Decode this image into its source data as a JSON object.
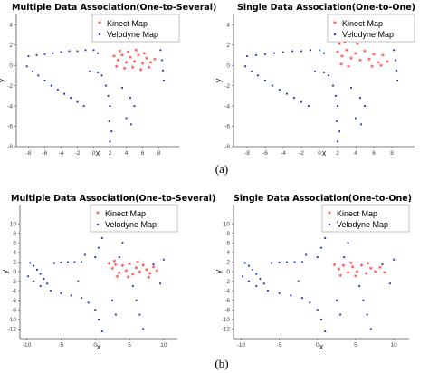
{
  "captions": [
    "(a)",
    "(b)"
  ],
  "colors": {
    "kinect": "#ff0000",
    "velodyne": "#1f3fbf",
    "axis": "#555555"
  },
  "chart_data": [
    {
      "type": "scatter",
      "title": "Multiple Data Association(One-to-Several)",
      "xlabel": "x",
      "ylabel": "y",
      "xlim": [
        -9.5,
        10.5
      ],
      "ylim": [
        -8,
        5
      ],
      "xticks": [
        -8,
        -6,
        -4,
        -2,
        0,
        2,
        4,
        6,
        8
      ],
      "yticks": [
        4,
        2,
        0,
        -2,
        -4,
        -6,
        -8
      ],
      "legend": "top-right",
      "series": [
        {
          "name": "Kinect Map",
          "marker": "*",
          "color": "#ff0000",
          "points": [
            [
              2.5,
              0.8
            ],
            [
              3.0,
              0.4
            ],
            [
              3.5,
              0.9
            ],
            [
              4.0,
              0.2
            ],
            [
              4.5,
              0.7
            ],
            [
              5.0,
              0.3
            ],
            [
              5.5,
              0.9
            ],
            [
              6.0,
              0.1
            ],
            [
              6.5,
              0.6
            ],
            [
              7.0,
              0.2
            ],
            [
              2.8,
              -0.2
            ],
            [
              3.8,
              -0.4
            ],
            [
              4.8,
              -0.3
            ],
            [
              5.8,
              -0.5
            ],
            [
              6.8,
              -0.3
            ],
            [
              3.2,
              1.3
            ],
            [
              4.2,
              1.2
            ],
            [
              5.2,
              1.4
            ],
            [
              6.2,
              1.1
            ],
            [
              7.5,
              0.5
            ]
          ]
        },
        {
          "name": "Velodyne Map",
          "marker": ".",
          "color": "#1f3fbf",
          "points": [
            [
              -8.2,
              -0.1
            ],
            [
              -7.5,
              -0.6
            ],
            [
              -6.8,
              -1.0
            ],
            [
              -6.0,
              -1.5
            ],
            [
              -5.2,
              -2.0
            ],
            [
              -4.4,
              -2.4
            ],
            [
              -3.6,
              -2.8
            ],
            [
              -2.8,
              -3.2
            ],
            [
              -2.0,
              -3.6
            ],
            [
              -1.2,
              -4.0
            ],
            [
              -8.0,
              0.9
            ],
            [
              -7.0,
              1.0
            ],
            [
              -6.0,
              1.1
            ],
            [
              -5.0,
              1.2
            ],
            [
              -4.0,
              1.3
            ],
            [
              -3.0,
              1.4
            ],
            [
              -2.0,
              1.4
            ],
            [
              -1.0,
              1.5
            ],
            [
              0.0,
              1.5
            ],
            [
              0.5,
              1.2
            ],
            [
              1.0,
              -1.0
            ],
            [
              1.5,
              -2.0
            ],
            [
              1.8,
              -3.0
            ],
            [
              2.0,
              -4.0
            ],
            [
              1.9,
              -5.5
            ],
            [
              2.2,
              -6.5
            ],
            [
              2.0,
              -7.5
            ],
            [
              3.5,
              -2.2
            ],
            [
              4.5,
              -3.2
            ],
            [
              5.0,
              -4.0
            ],
            [
              1.3,
              2.5
            ],
            [
              1.6,
              3.0
            ],
            [
              1.8,
              3.5
            ],
            [
              2.2,
              2.8
            ],
            [
              4.0,
              -5.2
            ],
            [
              4.6,
              -5.8
            ],
            [
              8.0,
              2.5
            ],
            [
              8.2,
              1.5
            ],
            [
              8.4,
              0.5
            ],
            [
              8.5,
              -0.5
            ],
            [
              8.6,
              -1.5
            ],
            [
              -0.5,
              -0.6
            ],
            [
              0.5,
              -0.7
            ]
          ]
        }
      ]
    },
    {
      "type": "scatter",
      "title": "Single Data Association(One-to-One)",
      "xlabel": "x",
      "ylabel": "y",
      "xlim": [
        -9.5,
        10.5
      ],
      "ylim": [
        -8,
        5
      ],
      "xticks": [
        -8,
        -6,
        -4,
        -2,
        0,
        2,
        4,
        6,
        8
      ],
      "yticks": [
        4,
        2,
        0,
        -2,
        -4,
        -6,
        -8
      ],
      "legend": "top-right",
      "series": [
        {
          "name": "Kinect Map",
          "marker": "*",
          "color": "#ff0000",
          "points": [
            [
              2.0,
              1.2
            ],
            [
              2.5,
              0.8
            ],
            [
              3.0,
              1.4
            ],
            [
              3.5,
              0.6
            ],
            [
              4.0,
              1.1
            ],
            [
              4.5,
              0.4
            ],
            [
              5.0,
              1.3
            ],
            [
              5.5,
              0.5
            ],
            [
              6.0,
              1.0
            ],
            [
              6.5,
              0.2
            ],
            [
              7.0,
              0.9
            ],
            [
              2.2,
              2.0
            ],
            [
              2.8,
              2.2
            ],
            [
              3.6,
              2.4
            ],
            [
              2.4,
              0.0
            ],
            [
              3.2,
              -0.2
            ],
            [
              5.8,
              -0.2
            ],
            [
              6.8,
              -0.1
            ],
            [
              7.5,
              0.3
            ],
            [
              4.2,
              2.0
            ]
          ]
        },
        {
          "name": "Velodyne Map",
          "marker": ".",
          "color": "#1f3fbf",
          "points": [
            [
              -8.2,
              -0.1
            ],
            [
              -7.5,
              -0.6
            ],
            [
              -6.8,
              -1.0
            ],
            [
              -6.0,
              -1.5
            ],
            [
              -5.2,
              -2.0
            ],
            [
              -4.4,
              -2.4
            ],
            [
              -3.6,
              -2.8
            ],
            [
              -2.8,
              -3.2
            ],
            [
              -2.0,
              -3.6
            ],
            [
              -1.2,
              -4.0
            ],
            [
              -8.0,
              0.9
            ],
            [
              -7.0,
              1.0
            ],
            [
              -6.0,
              1.1
            ],
            [
              -5.0,
              1.2
            ],
            [
              -4.0,
              1.3
            ],
            [
              -3.0,
              1.4
            ],
            [
              -2.0,
              1.4
            ],
            [
              -1.0,
              1.5
            ],
            [
              0.0,
              1.5
            ],
            [
              0.5,
              1.2
            ],
            [
              1.0,
              -1.0
            ],
            [
              1.5,
              -2.0
            ],
            [
              1.8,
              -3.0
            ],
            [
              2.0,
              -4.0
            ],
            [
              1.9,
              -5.5
            ],
            [
              2.2,
              -6.5
            ],
            [
              2.0,
              -7.5
            ],
            [
              3.5,
              -2.2
            ],
            [
              4.5,
              -3.2
            ],
            [
              5.0,
              -4.0
            ],
            [
              1.3,
              2.5
            ],
            [
              1.6,
              3.0
            ],
            [
              1.8,
              3.5
            ],
            [
              2.2,
              2.8
            ],
            [
              4.0,
              -5.2
            ],
            [
              4.6,
              -5.8
            ],
            [
              8.0,
              2.5
            ],
            [
              8.2,
              1.5
            ],
            [
              8.4,
              0.5
            ],
            [
              8.5,
              -0.5
            ],
            [
              8.6,
              -1.5
            ],
            [
              -0.5,
              -0.6
            ],
            [
              0.5,
              -0.7
            ]
          ]
        }
      ]
    },
    {
      "type": "scatter",
      "title": "Multiple Data Association(One-to-Several)",
      "xlabel": "x",
      "ylabel": "y",
      "xlim": [
        -11,
        12
      ],
      "ylim": [
        -14,
        14
      ],
      "xticks": [
        -10,
        -5,
        0,
        5,
        10
      ],
      "yticks": [
        10,
        8,
        6,
        4,
        2,
        0,
        -2,
        -4,
        -6,
        -8,
        -10,
        -12
      ],
      "legend": "top-right",
      "series": [
        {
          "name": "Kinect Map",
          "marker": "*",
          "color": "#ff0000",
          "points": [
            [
              2.0,
              1.5
            ],
            [
              2.5,
              0.5
            ],
            [
              3.0,
              1.2
            ],
            [
              3.5,
              -0.5
            ],
            [
              4.0,
              1.0
            ],
            [
              4.5,
              0.0
            ],
            [
              5.0,
              1.4
            ],
            [
              5.5,
              -0.8
            ],
            [
              6.0,
              0.6
            ],
            [
              6.5,
              -0.3
            ],
            [
              7.0,
              1.1
            ],
            [
              7.5,
              0.2
            ],
            [
              8.0,
              -0.6
            ],
            [
              8.5,
              0.8
            ],
            [
              9.0,
              0.0
            ],
            [
              3.2,
              -1.2
            ],
            [
              4.8,
              -1.3
            ],
            [
              6.2,
              1.8
            ],
            [
              7.8,
              -1.4
            ],
            [
              2.8,
              2.0
            ]
          ]
        },
        {
          "name": "Velodyne Map",
          "marker": ".",
          "color": "#1f3fbf",
          "points": [
            [
              -9.5,
              1.8
            ],
            [
              -9.0,
              1.2
            ],
            [
              -8.5,
              0.4
            ],
            [
              -8.0,
              -0.5
            ],
            [
              -7.5,
              -1.5
            ],
            [
              -7.0,
              -2.5
            ],
            [
              -6.0,
              1.8
            ],
            [
              -5.0,
              1.9
            ],
            [
              -4.0,
              2.0
            ],
            [
              -3.0,
              2.0
            ],
            [
              -2.0,
              2.0
            ],
            [
              -9.8,
              -1.0
            ],
            [
              -9.0,
              -2.0
            ],
            [
              -8.0,
              -3.0
            ],
            [
              -6.5,
              -4.0
            ],
            [
              -5.0,
              -4.5
            ],
            [
              -3.5,
              -5.0
            ],
            [
              -2.0,
              -5.5
            ],
            [
              -1.0,
              -6.5
            ],
            [
              0.0,
              -8.0
            ],
            [
              0.5,
              -10.0
            ],
            [
              1.0,
              -12.5
            ],
            [
              0.0,
              3.0
            ],
            [
              0.5,
              5.0
            ],
            [
              1.0,
              7.0
            ],
            [
              1.2,
              9.0
            ],
            [
              1.5,
              11.0
            ],
            [
              3.5,
              3.0
            ],
            [
              4.0,
              6.0
            ],
            [
              4.2,
              9.0
            ],
            [
              4.5,
              12.0
            ],
            [
              5.5,
              -3.0
            ],
            [
              6.0,
              -6.0
            ],
            [
              6.5,
              -9.0
            ],
            [
              7.0,
              -12.0
            ],
            [
              8.5,
              1.5
            ],
            [
              10.0,
              2.5
            ],
            [
              9.5,
              -2.5
            ],
            [
              -2.5,
              -2.0
            ],
            [
              -1.5,
              3.5
            ],
            [
              2.5,
              -6.0
            ],
            [
              3.0,
              -9.0
            ]
          ]
        }
      ]
    },
    {
      "type": "scatter",
      "title": "Single Data Association(One-to-One)",
      "xlabel": "x",
      "ylabel": "y",
      "xlim": [
        -11,
        12
      ],
      "ylim": [
        -14,
        14
      ],
      "xticks": [
        -10,
        -5,
        0,
        5,
        10
      ],
      "yticks": [
        10,
        8,
        6,
        4,
        2,
        0,
        -2,
        -4,
        -6,
        -8,
        -10,
        -12
      ],
      "legend": "top-right",
      "series": [
        {
          "name": "Kinect Map",
          "marker": "*",
          "color": "#ff0000",
          "points": [
            [
              2.2,
              1.2
            ],
            [
              2.8,
              0.3
            ],
            [
              3.4,
              1.0
            ],
            [
              4.0,
              -0.4
            ],
            [
              4.6,
              0.8
            ],
            [
              5.2,
              -0.2
            ],
            [
              5.8,
              1.1
            ],
            [
              6.4,
              -0.6
            ],
            [
              7.0,
              0.5
            ],
            [
              7.6,
              -0.2
            ],
            [
              8.2,
              0.7
            ],
            [
              8.8,
              -0.4
            ],
            [
              3.0,
              -1.0
            ],
            [
              5.0,
              -1.1
            ],
            [
              6.6,
              1.5
            ],
            [
              4.4,
              1.6
            ]
          ]
        },
        {
          "name": "Velodyne Map",
          "marker": ".",
          "color": "#1f3fbf",
          "points": [
            [
              -9.5,
              1.8
            ],
            [
              -9.0,
              1.2
            ],
            [
              -8.5,
              0.4
            ],
            [
              -8.0,
              -0.5
            ],
            [
              -7.5,
              -1.5
            ],
            [
              -7.0,
              -2.5
            ],
            [
              -6.0,
              1.8
            ],
            [
              -5.0,
              1.9
            ],
            [
              -4.0,
              2.0
            ],
            [
              -3.0,
              2.0
            ],
            [
              -2.0,
              2.0
            ],
            [
              -9.8,
              -1.0
            ],
            [
              -9.0,
              -2.0
            ],
            [
              -8.0,
              -3.0
            ],
            [
              -6.5,
              -4.0
            ],
            [
              -5.0,
              -4.5
            ],
            [
              -3.5,
              -5.0
            ],
            [
              -2.0,
              -5.5
            ],
            [
              -1.0,
              -6.5
            ],
            [
              0.0,
              -8.0
            ],
            [
              0.5,
              -10.0
            ],
            [
              1.0,
              -12.5
            ],
            [
              0.0,
              3.0
            ],
            [
              0.5,
              5.0
            ],
            [
              1.0,
              7.0
            ],
            [
              1.2,
              9.0
            ],
            [
              1.5,
              11.0
            ],
            [
              3.5,
              3.0
            ],
            [
              4.0,
              6.0
            ],
            [
              4.2,
              9.0
            ],
            [
              4.5,
              12.0
            ],
            [
              5.5,
              -3.0
            ],
            [
              6.0,
              -6.0
            ],
            [
              6.5,
              -9.0
            ],
            [
              7.0,
              -12.0
            ],
            [
              8.5,
              1.5
            ],
            [
              10.0,
              2.5
            ],
            [
              9.5,
              -2.5
            ],
            [
              -2.5,
              -2.0
            ],
            [
              -1.5,
              3.5
            ],
            [
              2.5,
              -6.0
            ],
            [
              3.0,
              -9.0
            ]
          ]
        }
      ]
    }
  ]
}
